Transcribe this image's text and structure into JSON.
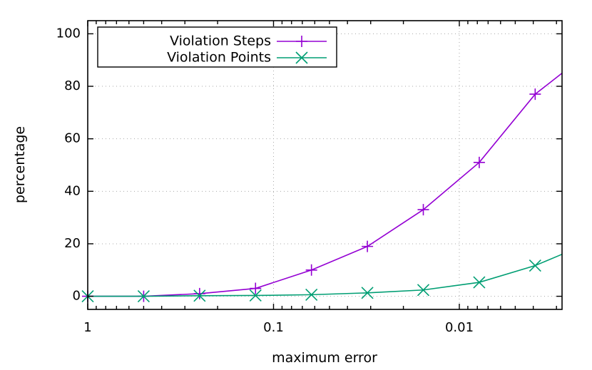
{
  "chart_data": {
    "type": "line",
    "xlabel": "maximum error",
    "ylabel": "percentage",
    "x_scale": "log",
    "x_reversed": true,
    "xlim": [
      1.0,
      0.0028
    ],
    "ylim": [
      -5,
      105
    ],
    "x_ticks": [
      {
        "value": 1,
        "label": "1"
      },
      {
        "value": 0.1,
        "label": "0.1"
      },
      {
        "value": 0.01,
        "label": "0.01"
      }
    ],
    "y_ticks": [
      0,
      20,
      40,
      60,
      80,
      100
    ],
    "grid": true,
    "legend_position": "top-left",
    "x": [
      1.0,
      0.5,
      0.25,
      0.125,
      0.0625,
      0.03125,
      0.015625,
      0.0078125,
      0.00390625,
      0.0028
    ],
    "series": [
      {
        "name": "Violation Steps",
        "color": "#9400d3",
        "marker": "plus",
        "values": [
          0,
          0,
          1,
          3,
          10,
          19,
          33,
          51,
          77,
          85
        ]
      },
      {
        "name": "Violation Points",
        "color": "#009e73",
        "marker": "cross",
        "values": [
          0,
          0,
          0.2,
          0.3,
          0.6,
          1.3,
          2.4,
          5.3,
          11.7,
          16
        ]
      }
    ],
    "marker_count": [
      9,
      9
    ]
  }
}
